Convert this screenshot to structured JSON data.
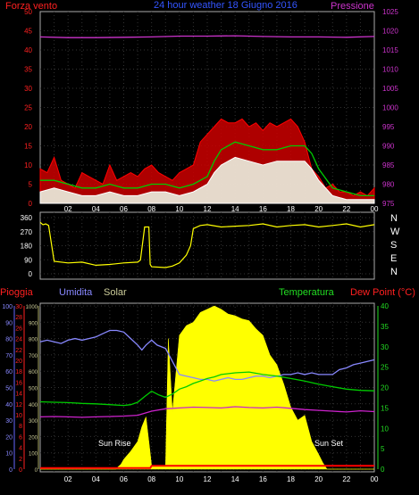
{
  "chart_data": [
    {
      "type": "line",
      "title": "24 hour weather  18 Giugno 2016",
      "left_axis_label": "Forza vento",
      "right_axis_label": "Pressione",
      "left_ylim": [
        0,
        50
      ],
      "left_ticks": [
        0,
        5,
        10,
        15,
        20,
        25,
        30,
        35,
        40,
        45,
        50
      ],
      "right_ylim": [
        975,
        1025
      ],
      "right_ticks": [
        975,
        980,
        985,
        990,
        995,
        1000,
        1005,
        1010,
        1015,
        1020,
        1025
      ],
      "x_ticks": [
        "02",
        "04",
        "06",
        "08",
        "10",
        "12",
        "14",
        "16",
        "18",
        "20",
        "22",
        "00"
      ],
      "grid": true,
      "series": [
        {
          "name": "wind gust",
          "color": "#ff0000",
          "x": [
            0,
            0.5,
            1,
            1.5,
            2,
            2.5,
            3,
            3.5,
            4,
            4.5,
            5,
            5.5,
            6,
            6.5,
            7,
            7.5,
            8,
            8.5,
            9,
            9.5,
            10,
            10.5,
            11,
            11.5,
            12,
            12.5,
            13,
            13.5,
            14,
            14.5,
            15,
            15.5,
            16,
            16.5,
            17,
            17.5,
            18,
            18.5,
            19,
            19.5,
            20,
            20.5,
            21,
            21.5,
            22,
            22.5,
            23,
            23.5,
            24
          ],
          "values": [
            9,
            8,
            12,
            6,
            5,
            4,
            8,
            7,
            6,
            5,
            10,
            6,
            7,
            8,
            7,
            9,
            10,
            8,
            7,
            6,
            8,
            9,
            10,
            16,
            18,
            20,
            22,
            21,
            21,
            22,
            20,
            21,
            19,
            21,
            20,
            21,
            22,
            20,
            16,
            9,
            7,
            4,
            5,
            3,
            3,
            2,
            3,
            2,
            4
          ]
        },
        {
          "name": "wind average",
          "color": "#00cc00",
          "x": [
            0,
            1,
            2,
            3,
            4,
            5,
            6,
            7,
            8,
            9,
            10,
            11,
            12,
            12.5,
            13,
            14,
            15,
            16,
            17,
            18,
            19,
            19.5,
            20,
            21,
            22,
            23,
            24
          ],
          "values": [
            6,
            6,
            5,
            4,
            4,
            5,
            4,
            4,
            5,
            5,
            4,
            5,
            7,
            11,
            14,
            16,
            15,
            14,
            14,
            15,
            15,
            13,
            9,
            4,
            3,
            2,
            2
          ]
        },
        {
          "name": "wind speed",
          "color": "#ffffff",
          "x": [
            0,
            1,
            2,
            3,
            4,
            5,
            6,
            7,
            8,
            9,
            10,
            11,
            12,
            12.5,
            13,
            14,
            15,
            16,
            17,
            18,
            19,
            19.5,
            20,
            21,
            22,
            23,
            24
          ],
          "values": [
            3,
            4,
            3,
            2,
            2,
            3,
            2,
            2,
            3,
            3,
            2,
            3,
            5,
            8,
            10,
            12,
            11,
            10,
            11,
            11,
            11,
            9,
            6,
            2,
            1,
            1,
            1
          ]
        },
        {
          "name": "pressure",
          "color": "#cc33cc",
          "axis": "right",
          "x": [
            0,
            2,
            4,
            6,
            8,
            10,
            12,
            14,
            16,
            18,
            20,
            22,
            24
          ],
          "values": [
            1018.4,
            1018.2,
            1018.2,
            1018.3,
            1018.4,
            1018.6,
            1018.6,
            1018.7,
            1018.5,
            1018.4,
            1018.4,
            1018.3,
            1018.5
          ]
        }
      ]
    },
    {
      "type": "line",
      "ylim": [
        0,
        360
      ],
      "left_ticks": [
        0,
        90,
        180,
        270,
        360
      ],
      "compass_labels": [
        "N",
        "W",
        "S",
        "E",
        "N"
      ],
      "grid": true,
      "series": [
        {
          "name": "wind direction",
          "color": "#ffff00",
          "x": [
            0,
            0.2,
            0.4,
            0.6,
            1,
            2,
            3,
            4,
            5,
            6,
            7,
            7.2,
            7.5,
            7.8,
            7.9,
            8,
            9,
            9.5,
            10,
            10.5,
            10.8,
            11,
            11.5,
            12,
            13,
            14,
            15,
            16,
            17,
            18,
            19,
            20,
            21,
            22,
            23,
            24
          ],
          "values": [
            330,
            315,
            320,
            310,
            80,
            70,
            75,
            55,
            60,
            70,
            75,
            88,
            300,
            300,
            60,
            45,
            40,
            50,
            70,
            120,
            180,
            290,
            310,
            315,
            300,
            305,
            310,
            320,
            300,
            310,
            315,
            300,
            310,
            320,
            300,
            315
          ]
        }
      ]
    },
    {
      "type": "line",
      "left_labels": [
        "Pioggia",
        "Umidita",
        "Solar"
      ],
      "right_labels": [
        "Temperatura",
        "Dew Point (°C)"
      ],
      "humidity_ticks": [
        0,
        10,
        20,
        30,
        40,
        50,
        60,
        70,
        80,
        90,
        100
      ],
      "rain_ticks": [
        0,
        2,
        4,
        6,
        8,
        10,
        12,
        14,
        16,
        18,
        20,
        22,
        24,
        26,
        28,
        30
      ],
      "solar_ticks": [
        0,
        100,
        200,
        300,
        400,
        500,
        600,
        700,
        800,
        900,
        1000
      ],
      "temp_ticks": [
        0,
        5,
        10,
        15,
        20,
        25,
        30,
        35,
        40
      ],
      "annotations": [
        "Sun Rise",
        "Sun Set"
      ],
      "x_ticks": [
        "02",
        "04",
        "06",
        "08",
        "10",
        "12",
        "14",
        "16",
        "18",
        "20",
        "22",
        "00"
      ],
      "grid": true,
      "series": [
        {
          "name": "solar",
          "color": "#ffff00",
          "type": "area",
          "axis": "solar",
          "x": [
            0,
            5.4,
            5.8,
            6,
            6.5,
            7,
            7.3,
            7.6,
            7.9,
            8,
            8.5,
            9,
            9.2,
            9.5,
            10,
            10.5,
            11,
            11.5,
            12,
            12.5,
            13,
            13.5,
            14,
            14.5,
            15,
            15.5,
            16,
            16.5,
            17,
            17.5,
            18,
            18.5,
            19,
            19.5,
            20,
            20.3,
            20.6,
            24
          ],
          "values": [
            0,
            0,
            30,
            60,
            110,
            170,
            260,
            320,
            100,
            20,
            20,
            20,
            800,
            350,
            820,
            880,
            900,
            960,
            980,
            1000,
            980,
            950,
            940,
            920,
            910,
            860,
            820,
            700,
            640,
            520,
            380,
            300,
            330,
            170,
            90,
            40,
            0,
            0
          ]
        },
        {
          "name": "Umidita",
          "color": "#8888ff",
          "axis": "humidity",
          "x": [
            0,
            0.5,
            1,
            1.5,
            2,
            2.5,
            3,
            3.5,
            4,
            4.5,
            5,
            5.5,
            6,
            6.5,
            7,
            7.3,
            7.6,
            8,
            8.4,
            9,
            9.5,
            10,
            10.5,
            11,
            11.5,
            12,
            12.5,
            13,
            13.5,
            14,
            14.5,
            15,
            15.5,
            16,
            16.5,
            17,
            17.5,
            18,
            18.5,
            19,
            19.5,
            20,
            20.5,
            21,
            21.5,
            22,
            22.5,
            23,
            23.5,
            24
          ],
          "values": [
            78,
            79,
            78,
            77,
            79,
            80,
            79,
            80,
            81,
            83,
            85,
            85,
            84,
            80,
            76,
            73,
            76,
            79,
            76,
            74,
            66,
            58,
            57,
            56,
            55,
            55,
            54,
            55,
            56,
            55,
            55,
            56,
            57,
            57,
            56,
            57,
            58,
            58,
            59,
            58,
            59,
            58,
            58,
            58,
            61,
            62,
            64,
            65,
            66,
            67
          ]
        },
        {
          "name": "Temperatura",
          "color": "#00cc00",
          "axis": "temp",
          "x": [
            0,
            1,
            2,
            3,
            4,
            5,
            6,
            6.5,
            7,
            7.5,
            8,
            8.5,
            9,
            9.5,
            10,
            10.5,
            11,
            11.5,
            12,
            12.5,
            13,
            14,
            15,
            16,
            17,
            18,
            19,
            20,
            21,
            22,
            23,
            24
          ],
          "values": [
            16.5,
            16.4,
            16.3,
            16.1,
            16.0,
            15.8,
            15.6,
            15.8,
            16.4,
            17.8,
            19.1,
            18.2,
            17.6,
            18.4,
            19.6,
            20.2,
            21.0,
            21.6,
            22.2,
            22.6,
            23.2,
            23.6,
            23.8,
            23.2,
            22.8,
            22.2,
            21.6,
            20.8,
            20.2,
            19.6,
            19.3,
            19.2
          ]
        },
        {
          "name": "Dew Point (°C)",
          "color": "#cc22cc",
          "axis": "temp",
          "x": [
            0,
            1,
            2,
            3,
            4,
            5,
            6,
            7,
            8,
            9,
            10,
            11,
            12,
            13,
            14,
            15,
            16,
            17,
            18,
            19,
            20,
            21,
            22,
            23,
            24
          ],
          "values": [
            12.8,
            12.9,
            12.8,
            12.7,
            12.8,
            12.9,
            13.0,
            13.2,
            14.2,
            14.8,
            15.0,
            15.2,
            15.1,
            15.0,
            15.3,
            15.1,
            15.0,
            15.2,
            14.9,
            14.6,
            14.4,
            14.2,
            14.0,
            14.3,
            14.1
          ]
        },
        {
          "name": "Pioggia",
          "color": "#ff0000",
          "axis": "rain",
          "x": [
            0,
            7.9,
            8,
            24
          ],
          "values": [
            0.2,
            0.2,
            0.6,
            0.6
          ]
        }
      ]
    }
  ]
}
